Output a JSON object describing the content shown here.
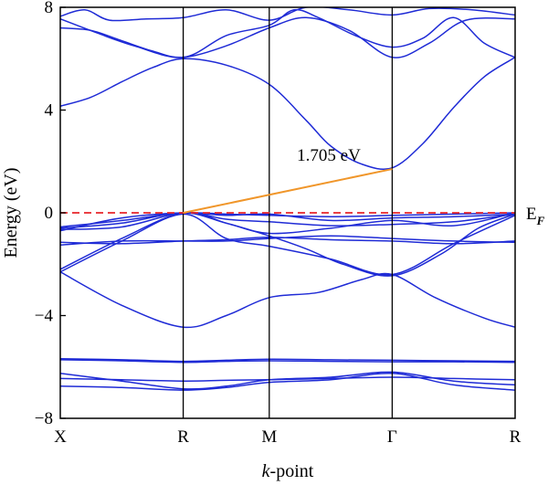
{
  "chart_data": {
    "type": "line",
    "title": "",
    "xlabel_italic": "k",
    "xlabel_rest": "-point",
    "ylabel": "Energy (eV)",
    "ylim": [
      -8,
      8
    ],
    "yticks": [
      8,
      4,
      0,
      -4,
      -8
    ],
    "ytick_labels": [
      "8",
      "4",
      "0",
      "−4",
      "−8"
    ],
    "kpoints": [
      {
        "label": "X",
        "pos": 0
      },
      {
        "label": "R",
        "pos": 1
      },
      {
        "label": "M",
        "pos": 1.7
      },
      {
        "label": "Γ",
        "pos": 2.7
      },
      {
        "label": "R",
        "pos": 3.7
      }
    ],
    "fermi_level": 0,
    "fermi_label_main": "E",
    "fermi_label_sub": "F",
    "gap_annotation": {
      "text": "1.705 eV",
      "from": [
        1,
        0
      ],
      "to": [
        2.7,
        1.705
      ]
    },
    "band_color": "#1f2bd6",
    "fermi_color": "#e8262a",
    "gap_color": "#f0962a",
    "bands": [
      {
        "x": [
          0,
          0.25,
          0.5,
          0.75,
          1,
          1.35,
          1.7,
          2.0,
          2.2,
          2.45,
          2.7,
          2.95,
          3.2,
          3.45,
          3.7
        ],
        "y": [
          4.15,
          4.5,
          5.1,
          5.65,
          6.0,
          5.75,
          5.0,
          3.6,
          2.6,
          1.9,
          1.75,
          2.7,
          4.1,
          5.3,
          6.05
        ]
      },
      {
        "x": [
          0,
          0.25,
          0.5,
          0.75,
          1,
          1.35,
          1.7,
          2.0,
          2.35,
          2.7,
          3.0,
          3.3,
          3.7
        ],
        "y": [
          7.2,
          7.1,
          6.7,
          6.3,
          6.05,
          6.5,
          7.2,
          7.6,
          7.1,
          6.05,
          6.6,
          7.5,
          7.55
        ]
      },
      {
        "x": [
          0,
          0.3,
          0.6,
          1,
          1.35,
          1.7,
          1.9,
          2.1,
          2.4,
          2.7,
          2.95,
          3.2,
          3.45,
          3.7
        ],
        "y": [
          7.55,
          7.0,
          6.5,
          6.05,
          6.9,
          7.3,
          7.9,
          7.6,
          6.9,
          6.45,
          6.8,
          7.6,
          6.6,
          6.05
        ]
      },
      {
        "x": [
          0,
          0.2,
          0.4,
          0.7,
          1,
          1.35,
          1.7,
          2.0,
          2.35,
          2.7,
          3.0,
          3.35,
          3.7
        ],
        "y": [
          7.65,
          7.9,
          7.5,
          7.55,
          7.6,
          7.9,
          7.5,
          8.0,
          7.9,
          7.7,
          7.95,
          7.9,
          7.7
        ]
      },
      {
        "x": [
          0,
          0.5,
          1,
          1.35,
          1.7,
          2.1,
          2.45,
          2.7,
          3.05,
          3.45,
          3.7
        ],
        "y": [
          -2.3,
          -3.6,
          -4.45,
          -4.0,
          -3.3,
          -3.1,
          -2.6,
          -2.4,
          -3.3,
          -4.1,
          -4.45
        ]
      },
      {
        "x": [
          0,
          0.5,
          1,
          1.35,
          1.7,
          2.2,
          2.7,
          3.2,
          3.7
        ],
        "y": [
          -2.3,
          -1.1,
          -0.05,
          -1.0,
          -1.3,
          -1.8,
          -2.4,
          -1.2,
          -0.1
        ]
      },
      {
        "x": [
          0,
          0.5,
          1,
          1.35,
          1.7,
          2.0,
          2.3,
          2.7,
          3.1,
          3.4,
          3.7
        ],
        "y": [
          -2.2,
          -1.0,
          0.0,
          -0.4,
          -0.9,
          -1.4,
          -2.0,
          -2.45,
          -1.6,
          -0.6,
          -0.05
        ]
      },
      {
        "x": [
          0,
          0.5,
          1,
          1.35,
          1.7,
          2.2,
          2.7,
          3.2,
          3.7
        ],
        "y": [
          -0.6,
          -0.4,
          0.0,
          -0.4,
          -0.8,
          -0.6,
          -0.3,
          -0.5,
          0.0
        ]
      },
      {
        "x": [
          0,
          0.5,
          1,
          1.35,
          1.7,
          2.2,
          2.7,
          3.2,
          3.7
        ],
        "y": [
          -0.55,
          -0.3,
          0.0,
          -0.1,
          -0.05,
          -0.3,
          -0.2,
          -0.15,
          -0.05
        ]
      },
      {
        "x": [
          0,
          0.5,
          1,
          1.35,
          1.7,
          2.2,
          2.7,
          3.2,
          3.7
        ],
        "y": [
          -0.65,
          -0.55,
          0.0,
          -0.25,
          -0.35,
          -0.5,
          -0.45,
          -0.35,
          -0.05
        ]
      },
      {
        "x": [
          0,
          0.5,
          1,
          1.35,
          1.7,
          2.2,
          2.7,
          3.2,
          3.7
        ],
        "y": [
          -0.7,
          -0.2,
          0.0,
          -0.05,
          -0.1,
          -0.15,
          -0.1,
          -0.05,
          0.0
        ]
      },
      {
        "x": [
          0,
          0.5,
          1,
          1.35,
          1.7,
          2.2,
          2.7,
          3.2,
          3.7
        ],
        "y": [
          -1.15,
          -1.2,
          -1.1,
          -1.05,
          -0.95,
          -1.05,
          -1.1,
          -1.2,
          -1.1
        ]
      },
      {
        "x": [
          0,
          0.5,
          1,
          1.35,
          1.7,
          2.2,
          2.7,
          3.2,
          3.7
        ],
        "y": [
          -1.25,
          -1.1,
          -1.1,
          -1.1,
          -1.0,
          -0.9,
          -1.0,
          -1.1,
          -1.15
        ]
      },
      {
        "x": [
          0,
          0.5,
          1,
          1.35,
          1.7,
          2.2,
          2.7,
          3.2,
          3.7
        ],
        "y": [
          -5.68,
          -5.72,
          -5.78,
          -5.74,
          -5.7,
          -5.72,
          -5.74,
          -5.76,
          -5.78
        ]
      },
      {
        "x": [
          0,
          0.5,
          1,
          1.35,
          1.7,
          2.2,
          2.7,
          3.2,
          3.7
        ],
        "y": [
          -5.72,
          -5.76,
          -5.82,
          -5.78,
          -5.76,
          -5.78,
          -5.8,
          -5.8,
          -5.82
        ]
      },
      {
        "x": [
          0,
          0.5,
          1,
          1.35,
          1.7,
          2.2,
          2.7,
          3.2,
          3.7
        ],
        "y": [
          -6.25,
          -6.55,
          -6.85,
          -6.75,
          -6.5,
          -6.4,
          -6.2,
          -6.55,
          -6.7
        ]
      },
      {
        "x": [
          0,
          0.5,
          1,
          1.35,
          1.7,
          2.2,
          2.7,
          3.2,
          3.7
        ],
        "y": [
          -6.45,
          -6.5,
          -6.55,
          -6.52,
          -6.5,
          -6.45,
          -6.4,
          -6.45,
          -6.5
        ]
      },
      {
        "x": [
          0,
          0.5,
          1,
          1.35,
          1.7,
          2.2,
          2.7,
          3.2,
          3.7
        ],
        "y": [
          -6.75,
          -6.8,
          -6.9,
          -6.8,
          -6.6,
          -6.5,
          -6.25,
          -6.7,
          -6.9
        ]
      }
    ]
  }
}
